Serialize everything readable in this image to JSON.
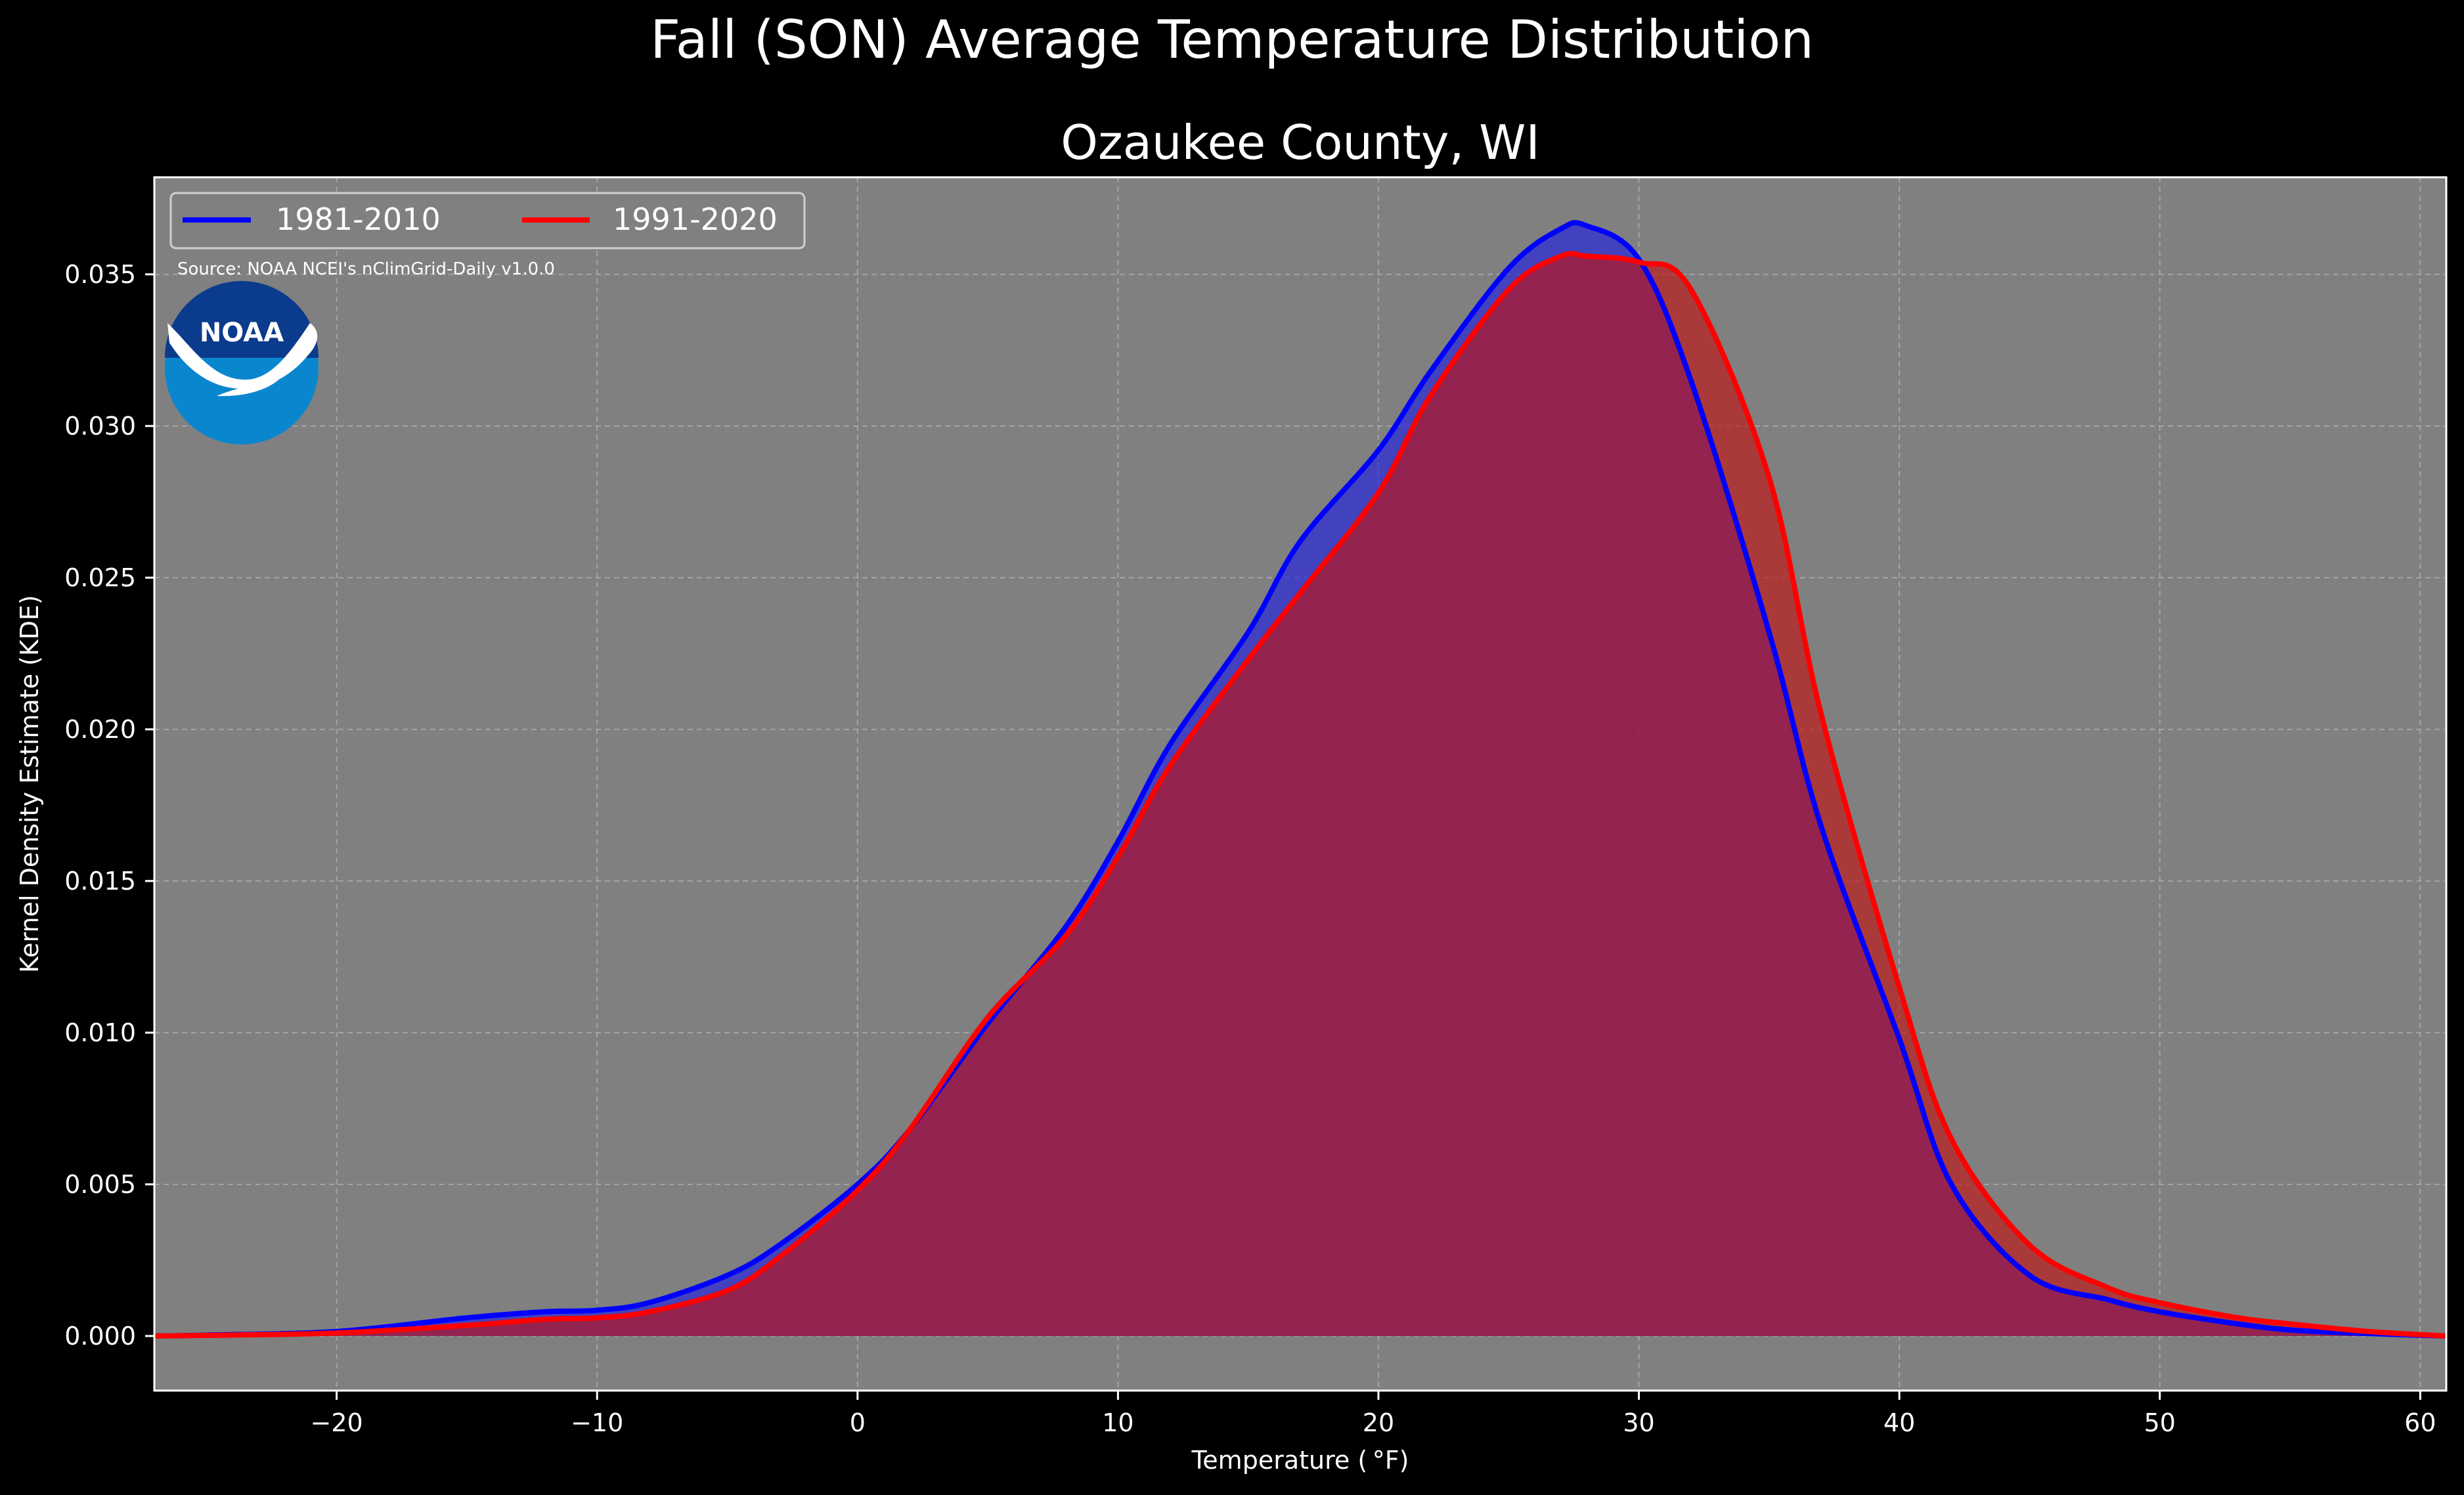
{
  "chart_data": {
    "type": "area",
    "title": "Fall (SON) Average Temperature Distribution",
    "subtitle": "Ozaukee County, WI",
    "xlabel": "Temperature ( °F)",
    "ylabel": "Kernel Density Estimate (KDE)",
    "xlim": [
      -27,
      61
    ],
    "ylim": [
      -0.0018,
      0.0382
    ],
    "x_ticks": [
      -20,
      -10,
      0,
      10,
      20,
      30,
      40,
      50,
      60
    ],
    "x_tick_labels": [
      "−20",
      "−10",
      "0",
      "10",
      "20",
      "30",
      "40",
      "50",
      "60"
    ],
    "y_ticks": [
      0.0,
      0.005,
      0.01,
      0.015,
      0.02,
      0.025,
      0.03,
      0.035
    ],
    "y_tick_labels": [
      "0.000",
      "0.005",
      "0.010",
      "0.015",
      "0.020",
      "0.025",
      "0.030",
      "0.035"
    ],
    "grid": true,
    "legend_position": "top-left",
    "source_note": "Source: NOAA NCEI's nClimGrid-Daily v1.0.0",
    "logo_text": "NOAA",
    "colors": {
      "background": "#000000",
      "plot_background": "#808080",
      "text": "#ffffff",
      "grid": "#b4b4b4"
    },
    "series": [
      {
        "name": "1981-2010",
        "color": "#0000ff",
        "fill": "#2020e0",
        "fill_opacity": 0.65,
        "x": [
          -27,
          -25,
          -20,
          -15,
          -12,
          -10,
          -8,
          -5,
          -3,
          0,
          2,
          5,
          8,
          10,
          12,
          15,
          17,
          20,
          22,
          25,
          27,
          28,
          30,
          32,
          35,
          37,
          40,
          42,
          45,
          48,
          50,
          53,
          55,
          58,
          61
        ],
        "values": [
          0.0,
          3e-05,
          0.00015,
          0.0006,
          0.0008,
          0.00085,
          0.0011,
          0.002,
          0.003,
          0.005,
          0.0068,
          0.0103,
          0.0135,
          0.0163,
          0.0195,
          0.0232,
          0.0262,
          0.0292,
          0.0318,
          0.0352,
          0.0365,
          0.0366,
          0.0355,
          0.0315,
          0.0232,
          0.0168,
          0.0098,
          0.005,
          0.002,
          0.0012,
          0.0008,
          0.0004,
          0.0002,
          8e-05,
          0.0
        ]
      },
      {
        "name": "1991-2020",
        "color": "#ff0000",
        "fill": "#c01212",
        "fill_opacity": 0.65,
        "x": [
          -27,
          -25,
          -20,
          -15,
          -12,
          -10,
          -8,
          -5,
          -3,
          0,
          2,
          5,
          8,
          10,
          12,
          15,
          17,
          20,
          22,
          25,
          27,
          28,
          30,
          32,
          35,
          37,
          40,
          42,
          45,
          48,
          50,
          53,
          55,
          58,
          61
        ],
        "values": [
          0.0,
          2e-05,
          0.0001,
          0.00035,
          0.00055,
          0.0006,
          0.0008,
          0.0015,
          0.0026,
          0.0048,
          0.0068,
          0.0105,
          0.0132,
          0.0158,
          0.0188,
          0.0223,
          0.0245,
          0.0278,
          0.031,
          0.0345,
          0.0356,
          0.0356,
          0.0354,
          0.0345,
          0.0283,
          0.0205,
          0.0115,
          0.0065,
          0.003,
          0.0016,
          0.0011,
          0.0006,
          0.0004,
          0.00015,
          0.0
        ]
      }
    ]
  }
}
